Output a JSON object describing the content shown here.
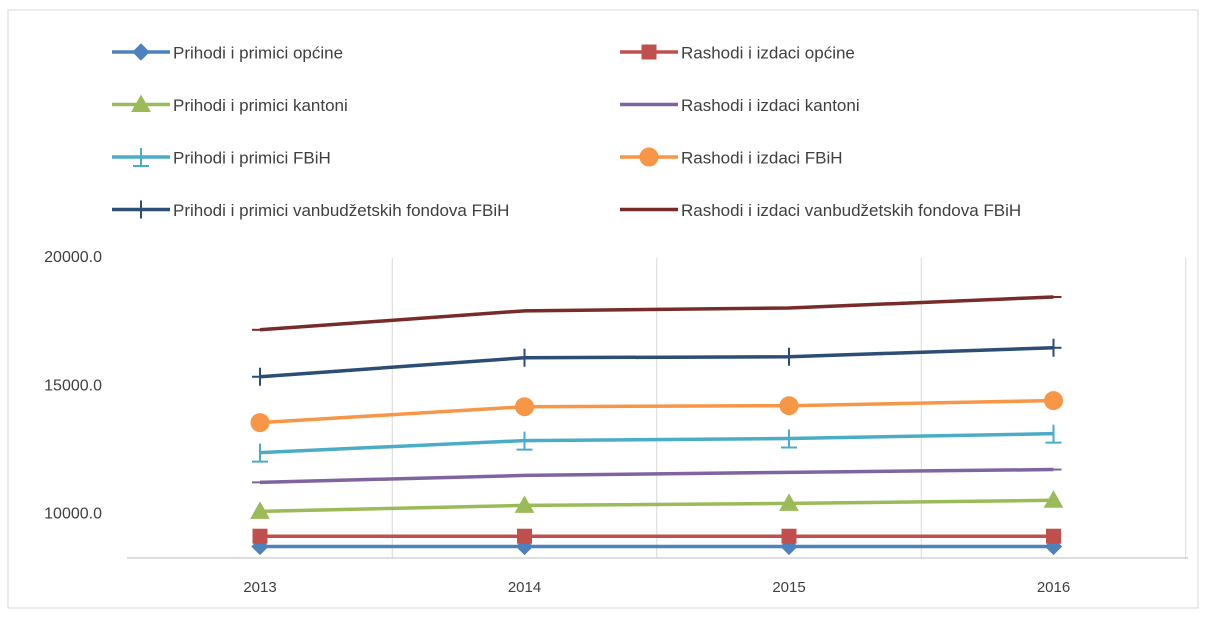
{
  "chart_data": {
    "type": "line",
    "categories": [
      "2013",
      "2014",
      "2015",
      "2016"
    ],
    "ylim": [
      8300,
      20000
    ],
    "yticks": [
      {
        "value": 10000,
        "label": "10000.0"
      },
      {
        "value": 15000,
        "label": "15000.0"
      },
      {
        "value": 20000,
        "label": "20000.0"
      }
    ],
    "grid": "vertical",
    "legend": "top",
    "series": [
      {
        "name": "Prihodi i primici općine",
        "color": "#4f81bd",
        "marker": "diamond",
        "values": [
          8750,
          8750,
          8750,
          8750
        ]
      },
      {
        "name": "Rashodi i izdaci općine",
        "color": "#c0504d",
        "marker": "square",
        "values": [
          9150,
          9150,
          9150,
          9150
        ]
      },
      {
        "name": "Prihodi i primici kantoni",
        "color": "#9bbb59",
        "marker": "triangle",
        "values": [
          10120,
          10350,
          10430,
          10550
        ]
      },
      {
        "name": "Rashodi i izdaci kantoni",
        "color": "#8064a2",
        "marker": "dash",
        "values": [
          11250,
          11520,
          11640,
          11750
        ]
      },
      {
        "name": "Prihodi i primici FBiH",
        "color": "#4bacc6",
        "marker": "ibeam",
        "values": [
          12410,
          12880,
          12960,
          13150
        ]
      },
      {
        "name": "Rashodi i izdaci FBiH",
        "color": "#f79646",
        "marker": "circle",
        "values": [
          13580,
          14200,
          14240,
          14440
        ]
      },
      {
        "name": "Prihodi i primici vanbudžetskih fondova FBiH",
        "color": "#2c4d75",
        "marker": "plus",
        "values": [
          15370,
          16110,
          16150,
          16500
        ]
      },
      {
        "name": "Rashodi i izdaci vanbudžetskih fondova FBiH",
        "color": "#772c2a",
        "marker": "dash",
        "values": [
          17200,
          17940,
          18050,
          18480
        ]
      }
    ]
  }
}
